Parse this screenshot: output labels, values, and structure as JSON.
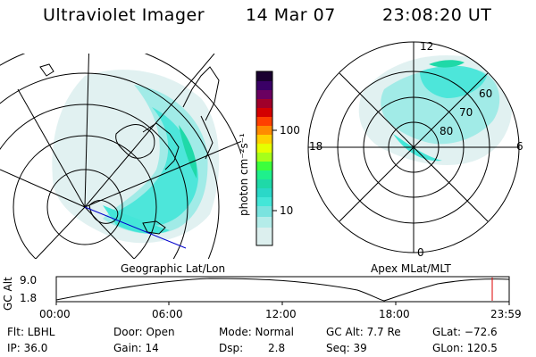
{
  "header": {
    "instrument": "Ultraviolet Imager",
    "date": "14 Mar 07",
    "time": "23:08:20 UT"
  },
  "colorbar": {
    "label": "photon cm⁻²s⁻¹",
    "ticks": [
      "100",
      "10"
    ],
    "colors": [
      "#000000",
      "#3a0066",
      "#8b0040",
      "#d40000",
      "#ff7a00",
      "#ffd000",
      "#c8ff00",
      "#3cff3c",
      "#1fd9a8",
      "#44e6d8",
      "#9aeae6",
      "#dcefee"
    ]
  },
  "left_panel": {
    "caption": "Geographic Lat/Lon"
  },
  "right_panel": {
    "caption": "Apex MLat/MLT",
    "mlt_labels": {
      "top": "12",
      "left": "18",
      "right": "6",
      "bottom": "0"
    },
    "lat_labels": [
      "60",
      "70",
      "80"
    ]
  },
  "altitude_plot": {
    "ylabel": "GC Alt",
    "yticks": [
      "9.0",
      "1.8"
    ],
    "xticks": [
      "00:00",
      "06:00",
      "12:00",
      "18:00",
      "23:59"
    ]
  },
  "footer": {
    "flt": "Flt: LBHL",
    "ip": "IP: 36.0",
    "door": "Door: Open",
    "gain": "Gain: 14",
    "mode": "Mode: Normal",
    "dsp_label": "Dsp:",
    "dsp_value": "2.8",
    "gc_alt": "GC Alt: 7.7 Re",
    "seq": "Seq: 39",
    "glat": "GLat: −72.6",
    "glon": "GLon: 120.5"
  }
}
